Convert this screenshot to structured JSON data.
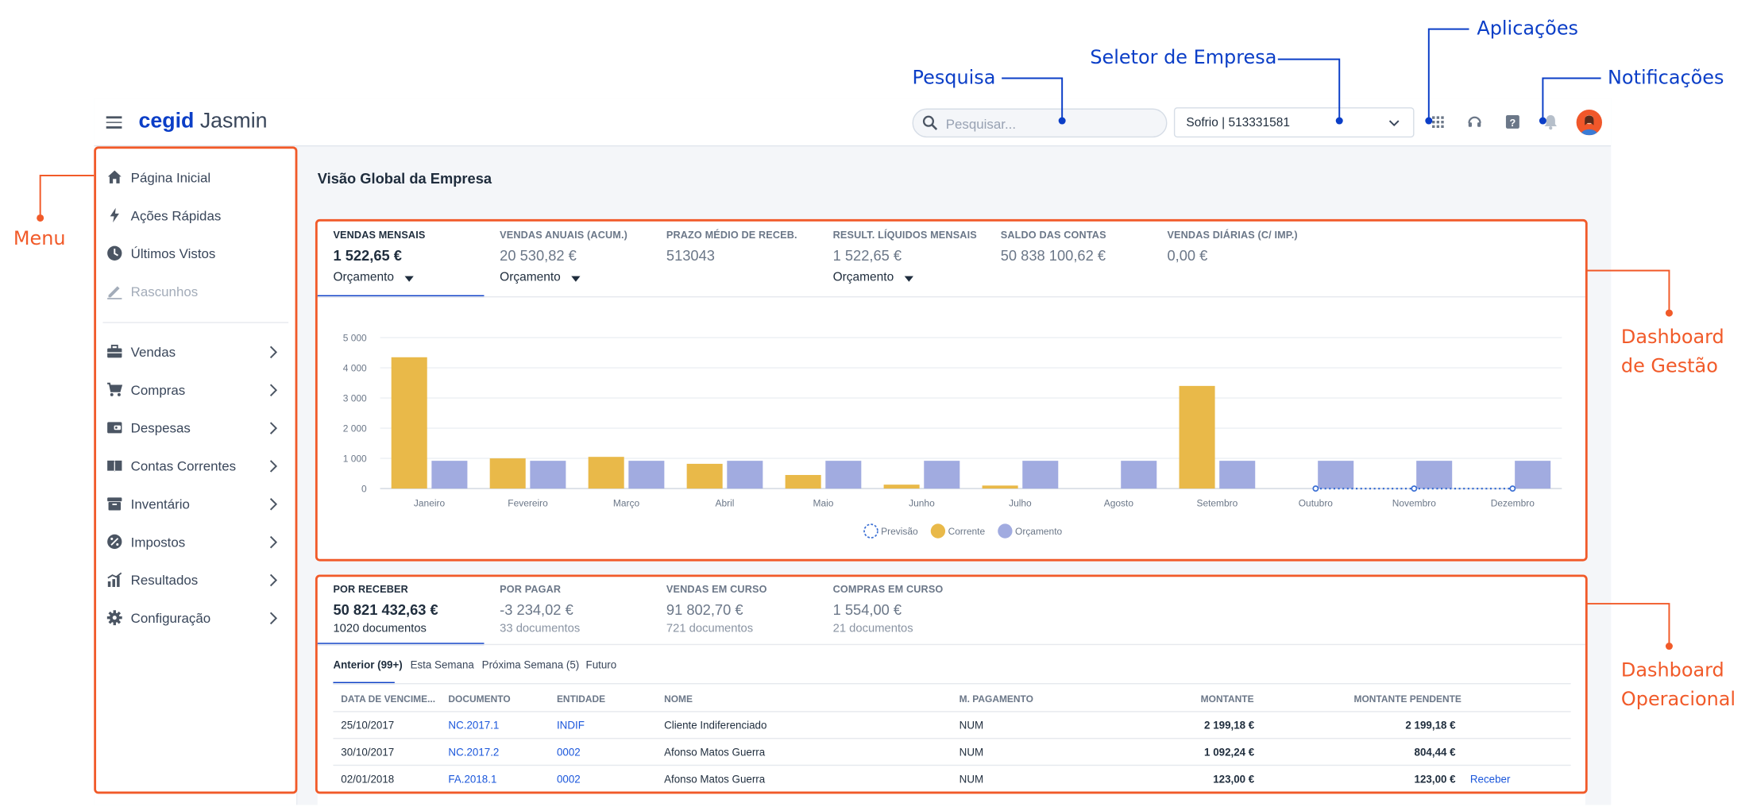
{
  "topbar": {
    "logo_brand": "cegid",
    "logo_product": "Jasmin",
    "search_placeholder": "Pesquisar...",
    "company_selector": "Sofrio | 513331581"
  },
  "sidebar": {
    "items": [
      {
        "label": "Página Inicial",
        "icon": "home-icon"
      },
      {
        "label": "Ações Rápidas",
        "icon": "bolt-icon"
      },
      {
        "label": "Últimos Vistos",
        "icon": "clock-icon"
      },
      {
        "label": "Rascunhos",
        "icon": "pencil-icon",
        "disabled": true
      },
      {
        "label": "Vendas",
        "icon": "briefcase-icon"
      },
      {
        "label": "Compras",
        "icon": "cart-icon"
      },
      {
        "label": "Despesas",
        "icon": "wallet-icon"
      },
      {
        "label": "Contas Correntes",
        "icon": "book-icon"
      },
      {
        "label": "Inventário",
        "icon": "archive-icon"
      },
      {
        "label": "Impostos",
        "icon": "percent-icon"
      },
      {
        "label": "Resultados",
        "icon": "chart-icon"
      },
      {
        "label": "Configuração",
        "icon": "gear-icon"
      }
    ]
  },
  "page_title": "Visão Global da Empresa",
  "management": {
    "kpis": [
      {
        "title": "VENDAS MENSAIS",
        "value": "1 522,65 €",
        "selector": "Orçamento"
      },
      {
        "title": "VENDAS ANUAIS (ACUM.)",
        "value": "20 530,82 €",
        "selector": "Orçamento"
      },
      {
        "title": "PRAZO MÉDIO DE RECEB.",
        "value": "513043"
      },
      {
        "title": "RESULT. LÍQUIDOS MENSAIS",
        "value": "1 522,65 €",
        "selector": "Orçamento"
      },
      {
        "title": "SALDO DAS CONTAS",
        "value": "50 838 100,62 €"
      },
      {
        "title": "VENDAS DIÁRIAS (C/ IMP.)",
        "value": "0,00 €"
      }
    ],
    "legend": [
      "Previsão",
      "Corrente",
      "Orçamento"
    ]
  },
  "chart_data": {
    "type": "bar",
    "categories": [
      "Janeiro",
      "Fevereiro",
      "Março",
      "Abril",
      "Maio",
      "Junho",
      "Julho",
      "Agosto",
      "Setembro",
      "Outubro",
      "Novembro",
      "Dezembro"
    ],
    "yticks": [
      "0",
      "1 000",
      "2 000",
      "3 000",
      "4 000",
      "5 000"
    ],
    "ylim": [
      0,
      5000
    ],
    "series": [
      {
        "name": "Corrente",
        "color": "#e9b949",
        "values": [
          4350,
          1000,
          1050,
          820,
          450,
          130,
          100,
          0,
          3400,
          null,
          null,
          null
        ]
      },
      {
        "name": "Orçamento",
        "color": "#a1abe0",
        "values": [
          920,
          920,
          920,
          920,
          920,
          920,
          920,
          920,
          920,
          920,
          920,
          920
        ]
      },
      {
        "name": "Previsão",
        "color": "#3b6fd4",
        "values": [
          null,
          null,
          null,
          null,
          null,
          null,
          null,
          null,
          null,
          0,
          0,
          0
        ]
      }
    ],
    "grid": true,
    "legend_position": "bottom"
  },
  "operational": {
    "kpis": [
      {
        "title": "POR RECEBER",
        "value": "50 821 432,63 €",
        "sub": "1020 documentos"
      },
      {
        "title": "POR PAGAR",
        "value": "-3 234,02 €",
        "sub": "33 documentos"
      },
      {
        "title": "VENDAS EM CURSO",
        "value": "91 802,70 €",
        "sub": "721 documentos"
      },
      {
        "title": "COMPRAS EM CURSO",
        "value": "1 554,00 €",
        "sub": "21 documentos"
      }
    ],
    "tabs": [
      "Anterior (99+)",
      "Esta Semana",
      "Próxima Semana (5)",
      "Futuro"
    ],
    "columns": [
      "DATA DE VENCIME...",
      "DOCUMENTO",
      "ENTIDADE",
      "NOME",
      "M. PAGAMENTO",
      "MONTANTE",
      "MONTANTE PENDENTE"
    ],
    "rows": [
      {
        "date": "25/10/2017",
        "doc": "NC.2017.1",
        "entity": "INDIF",
        "name": "Cliente Indiferenciado",
        "payment": "NUM",
        "amount": "2 199,18 €",
        "pending": "2 199,18 €",
        "action": ""
      },
      {
        "date": "30/10/2017",
        "doc": "NC.2017.2",
        "entity": "0002",
        "name": "Afonso Matos Guerra",
        "payment": "NUM",
        "amount": "1 092,24 €",
        "pending": "804,44 €",
        "action": ""
      },
      {
        "date": "02/01/2018",
        "doc": "FA.2018.1",
        "entity": "0002",
        "name": "Afonso Matos Guerra",
        "payment": "NUM",
        "amount": "123,00 €",
        "pending": "123,00 €",
        "action": "Receber"
      }
    ]
  },
  "annotations": {
    "pesquisa": "Pesquisa",
    "seletor": "Seletor de Empresa",
    "aplicacoes": "Aplicações",
    "notificacoes": "Notificações",
    "menu": "Menu",
    "dash_gestao_1": "Dashboard",
    "dash_gestao_2": "de Gestão",
    "dash_oper_1": "Dashboard",
    "dash_oper_2": "Operacional"
  },
  "colors": {
    "accent": "#0b3ec7",
    "annotation": "#f15a29",
    "current": "#e9b949",
    "budget": "#a1abe0"
  }
}
